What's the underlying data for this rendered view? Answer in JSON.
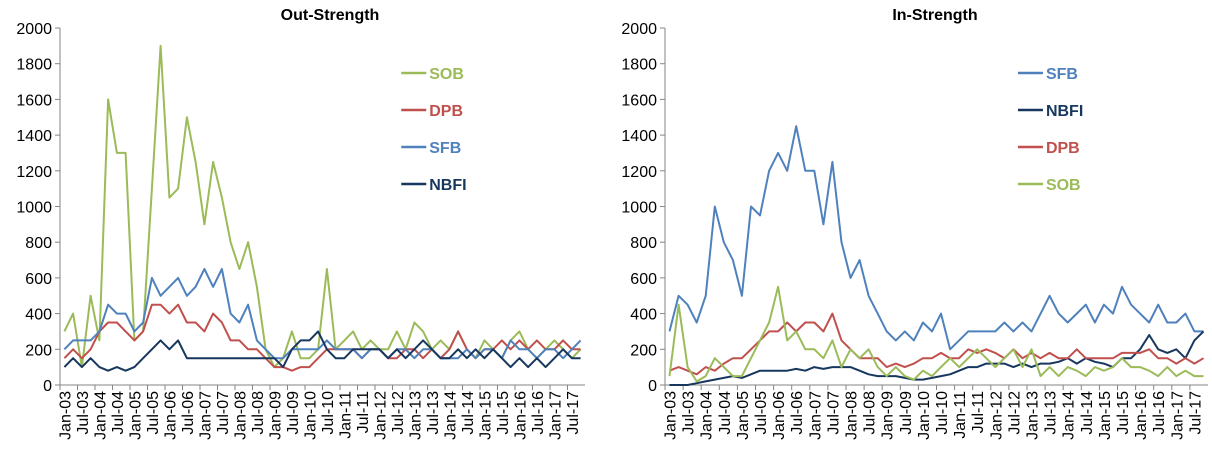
{
  "chart_data": [
    {
      "type": "line",
      "title": "Out-Strength",
      "grid": false,
      "legend": "upper right",
      "categories": [
        "Jan-03",
        null,
        "Jul-03",
        null,
        "Jan-04",
        null,
        "Jul-04",
        null,
        "Jan-05",
        null,
        "Jul-05",
        null,
        "Jan-06",
        null,
        "Jul-06",
        null,
        "Jan-07",
        null,
        "Jul-07",
        null,
        "Jan-08",
        null,
        "Jul-08",
        null,
        "Jan-09",
        null,
        "Jul-09",
        null,
        "Jan-10",
        null,
        "Jul-10",
        null,
        "Jan-11",
        null,
        "Jul-11",
        null,
        "Jan-12",
        null,
        "Jul-12",
        null,
        "Jan-13",
        null,
        "Jul-13",
        null,
        "Jan-14",
        null,
        "Jul-14",
        null,
        "Jan-15",
        null,
        "Jul-15",
        null,
        "Jan-16",
        null,
        "Jul-16",
        null,
        "Jan-17",
        null,
        "Jul-17",
        null
      ],
      "ylim": [
        0,
        2000
      ],
      "yticks": [
        0,
        200,
        400,
        600,
        800,
        1000,
        1200,
        1400,
        1600,
        1800,
        2000
      ],
      "series": [
        {
          "name": "SOB",
          "color": "#9bbb59",
          "values": [
            300,
            400,
            100,
            500,
            250,
            1600,
            1300,
            1300,
            250,
            300,
            1100,
            1900,
            1050,
            1100,
            1500,
            1250,
            900,
            1250,
            1050,
            800,
            650,
            800,
            550,
            200,
            100,
            150,
            300,
            150,
            150,
            200,
            650,
            200,
            250,
            300,
            200,
            250,
            200,
            200,
            300,
            200,
            350,
            300,
            200,
            250,
            200,
            300,
            200,
            150,
            250,
            200,
            150,
            250,
            300,
            200,
            150,
            200,
            250,
            200,
            150,
            200
          ]
        },
        {
          "name": "DPB",
          "color": "#c0504d",
          "values": [
            150,
            200,
            150,
            200,
            300,
            350,
            350,
            300,
            250,
            300,
            450,
            450,
            400,
            450,
            350,
            350,
            300,
            400,
            350,
            250,
            250,
            200,
            200,
            150,
            100,
            100,
            80,
            100,
            100,
            150,
            200,
            200,
            200,
            200,
            150,
            200,
            200,
            150,
            150,
            200,
            200,
            150,
            200,
            150,
            200,
            300,
            200,
            150,
            200,
            200,
            250,
            200,
            250,
            200,
            250,
            200,
            200,
            250,
            200,
            200
          ]
        },
        {
          "name": "SFB",
          "color": "#4f81bd",
          "values": [
            200,
            250,
            250,
            250,
            300,
            450,
            400,
            400,
            300,
            350,
            600,
            500,
            550,
            600,
            500,
            550,
            650,
            550,
            650,
            400,
            350,
            450,
            250,
            200,
            150,
            150,
            200,
            200,
            200,
            200,
            250,
            200,
            200,
            200,
            150,
            200,
            200,
            150,
            200,
            200,
            150,
            200,
            200,
            150,
            150,
            150,
            200,
            150,
            200,
            200,
            150,
            250,
            200,
            200,
            150,
            200,
            200,
            150,
            200,
            250
          ]
        },
        {
          "name": "NBFI",
          "color": "#17375e",
          "values": [
            100,
            150,
            100,
            150,
            100,
            80,
            100,
            80,
            100,
            150,
            200,
            250,
            200,
            250,
            150,
            150,
            150,
            150,
            150,
            150,
            150,
            150,
            150,
            150,
            150,
            100,
            200,
            250,
            250,
            300,
            200,
            150,
            150,
            200,
            200,
            200,
            200,
            150,
            200,
            150,
            200,
            250,
            200,
            150,
            150,
            200,
            150,
            200,
            150,
            200,
            150,
            100,
            150,
            100,
            150,
            100,
            150,
            200,
            150,
            150
          ]
        }
      ]
    },
    {
      "type": "line",
      "title": "In-Strength",
      "grid": false,
      "legend": "upper right",
      "categories": [
        "Jan-03",
        null,
        "Jul-03",
        null,
        "Jan-04",
        null,
        "Jul-04",
        null,
        "Jan-05",
        null,
        "Jul-05",
        null,
        "Jan-06",
        null,
        "Jul-06",
        null,
        "Jan-07",
        null,
        "Jul-07",
        null,
        "Jan-08",
        null,
        "Jul-08",
        null,
        "Jan-09",
        null,
        "Jul-09",
        null,
        "Jan-10",
        null,
        "Jul-10",
        null,
        "Jan-11",
        null,
        "Jul-11",
        null,
        "Jan-12",
        null,
        "Jul-12",
        null,
        "Jan-13",
        null,
        "Jul-13",
        null,
        "Jan-14",
        null,
        "Jul-14",
        null,
        "Jan-15",
        null,
        "Jul-15",
        null,
        "Jan-16",
        null,
        "Jul-16",
        null,
        "Jan-17",
        null,
        "Jul-17",
        null
      ],
      "ylim": [
        0,
        2000
      ],
      "yticks": [
        0,
        200,
        400,
        600,
        800,
        1000,
        1200,
        1400,
        1600,
        1800,
        2000
      ],
      "series": [
        {
          "name": "SFB",
          "color": "#4f81bd",
          "values": [
            300,
            500,
            450,
            350,
            500,
            1000,
            800,
            700,
            500,
            1000,
            950,
            1200,
            1300,
            1200,
            1450,
            1200,
            1200,
            900,
            1250,
            800,
            600,
            700,
            500,
            400,
            300,
            250,
            300,
            250,
            350,
            300,
            400,
            200,
            250,
            300,
            300,
            300,
            300,
            350,
            300,
            350,
            300,
            400,
            500,
            400,
            350,
            400,
            450,
            350,
            450,
            400,
            550,
            450,
            400,
            350,
            450,
            350,
            350,
            400,
            300,
            300
          ]
        },
        {
          "name": "NBFI",
          "color": "#17375e",
          "values": [
            0,
            0,
            0,
            10,
            20,
            30,
            40,
            50,
            40,
            60,
            80,
            80,
            80,
            80,
            90,
            80,
            100,
            90,
            100,
            100,
            100,
            80,
            60,
            50,
            50,
            50,
            40,
            30,
            30,
            40,
            50,
            60,
            80,
            100,
            100,
            120,
            120,
            120,
            100,
            120,
            100,
            120,
            120,
            130,
            150,
            120,
            150,
            130,
            120,
            100,
            150,
            150,
            200,
            280,
            200,
            180,
            200,
            150,
            250,
            300
          ]
        },
        {
          "name": "DPB",
          "color": "#c0504d",
          "values": [
            80,
            100,
            80,
            60,
            100,
            80,
            120,
            150,
            150,
            200,
            250,
            300,
            300,
            350,
            300,
            350,
            350,
            300,
            400,
            250,
            200,
            150,
            150,
            150,
            100,
            120,
            100,
            120,
            150,
            150,
            180,
            150,
            150,
            200,
            180,
            200,
            180,
            150,
            200,
            150,
            180,
            150,
            180,
            150,
            150,
            200,
            150,
            150,
            150,
            150,
            180,
            180,
            180,
            200,
            150,
            150,
            120,
            150,
            120,
            150
          ]
        },
        {
          "name": "SOB",
          "color": "#9bbb59",
          "values": [
            50,
            450,
            100,
            20,
            50,
            150,
            100,
            50,
            50,
            150,
            250,
            350,
            550,
            250,
            300,
            200,
            200,
            150,
            250,
            100,
            200,
            150,
            200,
            100,
            50,
            100,
            50,
            30,
            80,
            50,
            100,
            150,
            100,
            150,
            200,
            150,
            100,
            150,
            200,
            100,
            200,
            50,
            100,
            50,
            100,
            80,
            50,
            100,
            80,
            100,
            150,
            100,
            100,
            80,
            50,
            100,
            50,
            80,
            50,
            50
          ]
        }
      ]
    }
  ]
}
